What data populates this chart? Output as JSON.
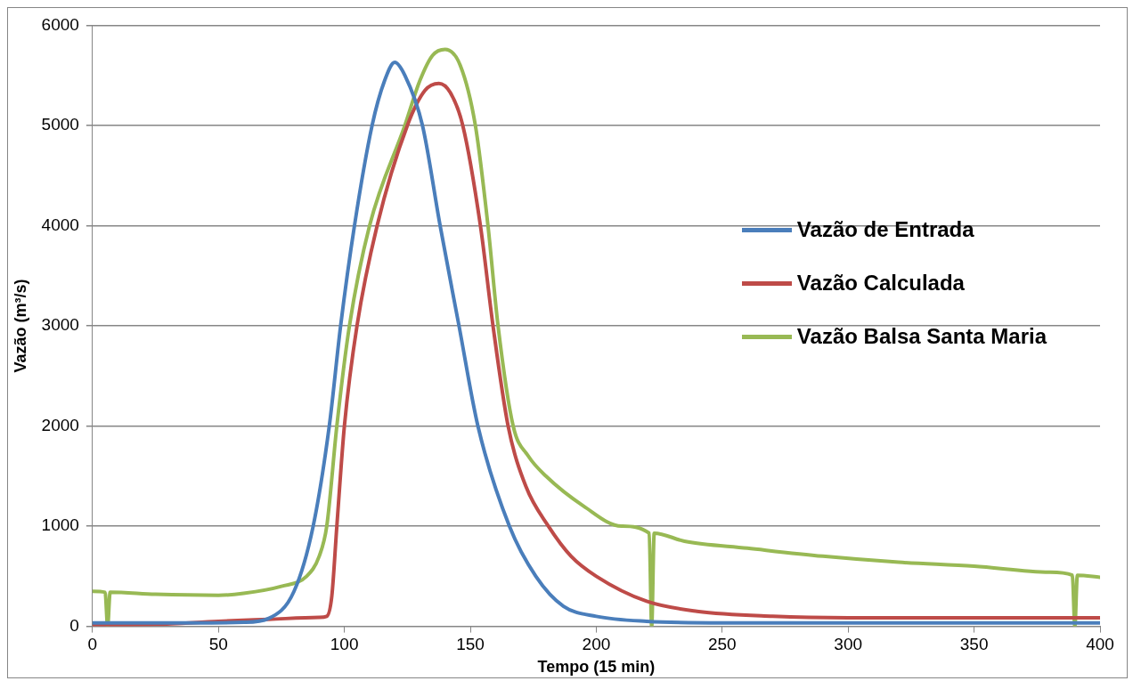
{
  "chart_data": {
    "type": "line",
    "xlabel": "Tempo (15 min)",
    "ylabel": "Vazão (m³/s)",
    "xlim": [
      0,
      400
    ],
    "xticks": [
      0,
      50,
      100,
      150,
      200,
      250,
      300,
      350,
      400
    ],
    "ylim": [
      0,
      6000
    ],
    "yticks": [
      0,
      1000,
      2000,
      3000,
      4000,
      5000,
      6000
    ],
    "grid": "y",
    "legend": "right",
    "marker": "none",
    "line_style": "solid",
    "series": [
      {
        "name": "Vazão de Entrada",
        "color": "#4a7ebb",
        "x": [
          0,
          40,
          60,
          70,
          80,
          87.6,
          94,
          98.5,
          104,
          111,
          116,
          120,
          124,
          131,
          138,
          145.5,
          153,
          165.5,
          176,
          187,
          200,
          220,
          250,
          300,
          350,
          400
        ],
        "values": [
          35,
          35,
          40,
          80,
          350,
          1000,
          2000,
          3000,
          4000,
          5000,
          5450,
          5630,
          5500,
          5000,
          4000,
          3000,
          2000,
          1000,
          500,
          200,
          100,
          50,
          35,
          35,
          35,
          35
        ]
      },
      {
        "name": "Vazão Calculada",
        "color": "#be4b48",
        "x": [
          0,
          25,
          50,
          70,
          90,
          93,
          95,
          97,
          100,
          105,
          113,
          125,
          132,
          137.5,
          142,
          147,
          154,
          159,
          165,
          172,
          181,
          190,
          200,
          220,
          240,
          270,
          300,
          350,
          400
        ],
        "values": [
          10,
          20,
          50,
          70,
          90,
          100,
          300,
          1000,
          2000,
          3000,
          4000,
          5000,
          5350,
          5420,
          5330,
          5000,
          4000,
          3000,
          2000,
          1400,
          1000,
          700,
          500,
          250,
          150,
          100,
          85,
          85,
          85
        ]
      },
      {
        "name": "Vazão Balsa Santa Maria",
        "color": "#98b954",
        "x": [
          0,
          5,
          6,
          7,
          25,
          50,
          60,
          75,
          85,
          90,
          93,
          97,
          102,
          110,
          124,
          130,
          135,
          140,
          146,
          152,
          157,
          161,
          167,
          173,
          180,
          195,
          210,
          221,
          222,
          223,
          235,
          260,
          290,
          320,
          350,
          380,
          389,
          390,
          391,
          400
        ],
        "values": [
          350,
          340,
          0,
          340,
          320,
          310,
          330,
          400,
          500,
          700,
          1000,
          2000,
          3000,
          4000,
          5000,
          5450,
          5700,
          5760,
          5600,
          5000,
          4000,
          3000,
          2000,
          1700,
          1500,
          1200,
          1000,
          930,
          0,
          930,
          850,
          780,
          700,
          640,
          600,
          540,
          510,
          0,
          510,
          490
        ]
      }
    ]
  }
}
